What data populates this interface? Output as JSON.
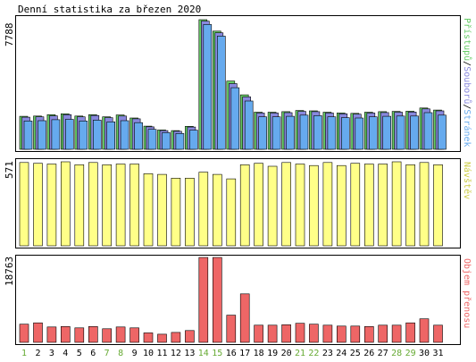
{
  "title": "Denní statistika za březen 2020",
  "colors": {
    "hits": "#66cc66",
    "files": "#8888dd",
    "pages": "#66aaee",
    "visits": "#ffff88",
    "kbytes": "#ee6666",
    "weekend_label": "#66aa33",
    "weekday_label": "#000000"
  },
  "chart_data": [
    {
      "type": "bar",
      "panel": "traffic",
      "ymax_label": "7788",
      "ylim": [
        0,
        7788
      ],
      "categories": [
        "1",
        "2",
        "3",
        "4",
        "5",
        "6",
        "7",
        "8",
        "9",
        "10",
        "11",
        "12",
        "13",
        "14",
        "15",
        "16",
        "17",
        "18",
        "19",
        "20",
        "21",
        "22",
        "23",
        "24",
        "25",
        "26",
        "27",
        "28",
        "29",
        "30",
        "31"
      ],
      "legend_words": [
        "Přístupů",
        "Souborů",
        "Stránek"
      ],
      "legend_separator": "/",
      "series": [
        {
          "name": "Přístupů",
          "color_key": "hits",
          "values": [
            1980,
            2000,
            2080,
            2130,
            2000,
            2080,
            1950,
            2060,
            1880,
            1390,
            1160,
            1120,
            1380,
            7788,
            7100,
            4100,
            3270,
            2230,
            2230,
            2260,
            2330,
            2310,
            2230,
            2180,
            2160,
            2230,
            2260,
            2280,
            2290,
            2480,
            2360
          ]
        },
        {
          "name": "Souborů",
          "color_key": "files",
          "values": [
            1930,
            1950,
            2010,
            2080,
            1950,
            2030,
            1900,
            2000,
            1830,
            1350,
            1120,
            1080,
            1340,
            7700,
            7000,
            3950,
            3150,
            2180,
            2180,
            2200,
            2280,
            2260,
            2180,
            2130,
            2110,
            2180,
            2210,
            2230,
            2240,
            2430,
            2310
          ]
        },
        {
          "name": "Stránek",
          "color_key": "pages",
          "values": [
            1700,
            1720,
            1780,
            1800,
            1700,
            1750,
            1650,
            1720,
            1600,
            1200,
            1000,
            950,
            1150,
            7500,
            6800,
            3700,
            2900,
            1950,
            1950,
            1980,
            2050,
            2020,
            1950,
            1900,
            1880,
            1950,
            1980,
            2000,
            2000,
            2200,
            2050
          ]
        }
      ]
    },
    {
      "type": "bar",
      "panel": "visits",
      "ymax_label": "571",
      "ylim": [
        0,
        571
      ],
      "categories": [
        "1",
        "2",
        "3",
        "4",
        "5",
        "6",
        "7",
        "8",
        "9",
        "10",
        "11",
        "12",
        "13",
        "14",
        "15",
        "16",
        "17",
        "18",
        "19",
        "20",
        "21",
        "22",
        "23",
        "24",
        "25",
        "26",
        "27",
        "28",
        "29",
        "30",
        "31"
      ],
      "series": [
        {
          "name": "Návštěv",
          "color_key": "visits",
          "values": [
            560,
            555,
            550,
            565,
            545,
            560,
            545,
            550,
            550,
            485,
            480,
            455,
            455,
            495,
            480,
            450,
            545,
            555,
            535,
            560,
            550,
            540,
            560,
            540,
            555,
            550,
            550,
            565,
            545,
            560,
            545
          ]
        }
      ]
    },
    {
      "type": "bar",
      "panel": "kbytes",
      "ymax_label": "18763",
      "ylim": [
        0,
        18763
      ],
      "categories": [
        "1",
        "2",
        "3",
        "4",
        "5",
        "6",
        "7",
        "8",
        "9",
        "10",
        "11",
        "12",
        "13",
        "14",
        "15",
        "16",
        "17",
        "18",
        "19",
        "20",
        "21",
        "22",
        "23",
        "24",
        "25",
        "26",
        "27",
        "28",
        "29",
        "30",
        "31"
      ],
      "series": [
        {
          "name": "Objem přenosu",
          "color_key": "kbytes",
          "values": [
            4000,
            4300,
            3400,
            3500,
            3200,
            3500,
            3000,
            3400,
            3200,
            2100,
            1800,
            2200,
            2600,
            18763,
            18763,
            6000,
            10700,
            3800,
            3800,
            3900,
            4200,
            4000,
            3800,
            3600,
            3600,
            3500,
            3800,
            3800,
            4300,
            5200,
            3800
          ]
        }
      ]
    }
  ],
  "weekend_days": [
    1,
    7,
    8,
    14,
    15,
    21,
    22,
    28,
    29
  ]
}
